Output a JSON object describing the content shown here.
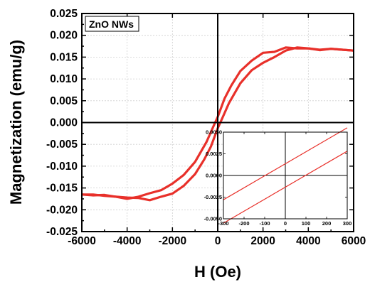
{
  "chart_data": [
    {
      "type": "line",
      "title": "",
      "xlabel": "H (Oe)",
      "ylabel": "Magnetization (emu/g)",
      "xlim": [
        -6000,
        6000
      ],
      "ylim": [
        -0.025,
        0.025
      ],
      "x_ticks": [
        -6000,
        -4000,
        -2000,
        0,
        2000,
        4000,
        6000
      ],
      "x_tick_labels": [
        "-6000",
        "-4000",
        "-2000",
        "0",
        "2000",
        "4000",
        "6000"
      ],
      "y_ticks": [
        -0.025,
        -0.02,
        -0.015,
        -0.01,
        -0.005,
        0,
        0.005,
        0.01,
        0.015,
        0.02,
        0.025
      ],
      "y_tick_labels": [
        "-0.025",
        "-0.020",
        "-0.015",
        "-0.010",
        "-0.005",
        "0.000",
        "0.005",
        "0.010",
        "0.015",
        "0.020",
        "0.025"
      ],
      "grid": true,
      "annotation": "ZnO NWs",
      "color": "#e8302a",
      "series": [
        {
          "x": [
            -6000,
            -5500,
            -5000,
            -4500,
            -4000,
            -3500,
            -3000,
            -2500,
            -2000,
            -1500,
            -1000,
            -500,
            -200,
            0,
            300,
            600,
            1000,
            1500,
            2000,
            2500,
            3000,
            3500,
            4000,
            4500,
            5000,
            5500,
            6000
          ],
          "y": [
            -0.0165,
            -0.0167,
            -0.0166,
            -0.017,
            -0.0175,
            -0.017,
            -0.0162,
            -0.0155,
            -0.014,
            -0.012,
            -0.009,
            -0.0045,
            -0.001,
            0.0013,
            0.0055,
            0.0085,
            0.0118,
            0.0142,
            0.016,
            0.0162,
            0.0172,
            0.017,
            0.017,
            0.0167,
            0.0169,
            0.0167,
            0.0165
          ]
        },
        {
          "x": [
            6000,
            5500,
            5000,
            4500,
            4000,
            3500,
            3000,
            2500,
            2000,
            1500,
            1000,
            500,
            200,
            0,
            -300,
            -600,
            -1000,
            -1500,
            -2000,
            -2500,
            -3000,
            -3500,
            -4000,
            -4500,
            -5000,
            -5500,
            -6000
          ],
          "y": [
            0.0165,
            0.0167,
            0.0169,
            0.0166,
            0.017,
            0.0172,
            0.0165,
            0.015,
            0.0137,
            0.012,
            0.009,
            0.0045,
            0.001,
            -0.0013,
            -0.0055,
            -0.0085,
            -0.0118,
            -0.0145,
            -0.0163,
            -0.017,
            -0.0178,
            -0.0173,
            -0.0172,
            -0.017,
            -0.0168,
            -0.0165,
            -0.0165
          ]
        }
      ]
    },
    {
      "type": "line",
      "title": "",
      "xlabel": "",
      "ylabel": "",
      "xlim": [
        -300,
        300
      ],
      "ylim": [
        -0.005,
        0.005
      ],
      "x_ticks": [
        -300,
        -200,
        -100,
        0,
        100,
        200,
        300
      ],
      "x_tick_labels": [
        "-300",
        "-200",
        "-100",
        "0",
        "100",
        "200",
        "300"
      ],
      "y_ticks": [
        -0.005,
        -0.0025,
        0,
        0.0025,
        0.005
      ],
      "y_tick_labels": [
        "-0.0050",
        "-0.0025",
        "0.0000",
        "0.0025",
        "0.0050"
      ],
      "grid": false,
      "color": "#e8302a",
      "series": [
        {
          "x": [
            -300,
            300
          ],
          "y": [
            -0.0028,
            0.0055
          ]
        },
        {
          "x": [
            -300,
            300
          ],
          "y": [
            -0.0055,
            0.0028
          ]
        }
      ]
    }
  ]
}
